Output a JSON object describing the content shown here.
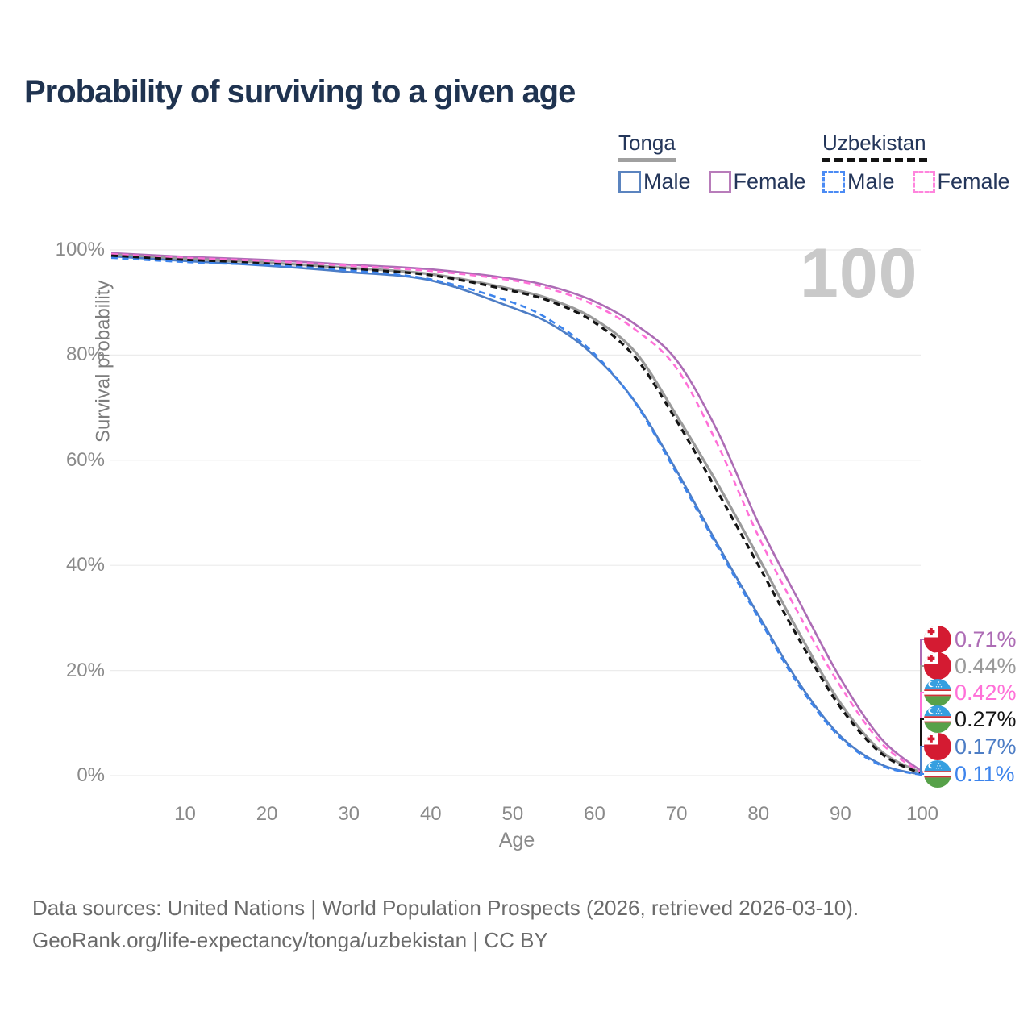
{
  "title": "Probability of surviving to a given age",
  "watermark": "100",
  "legend": {
    "groups": [
      {
        "country": "Tonga",
        "line_style": "solid",
        "line_color": "#a0a0a0",
        "items": [
          {
            "label": "Male",
            "color": "#5b84bf",
            "dashed": false
          },
          {
            "label": "Female",
            "color": "#b87cba",
            "dashed": false
          }
        ]
      },
      {
        "country": "Uzbekistan",
        "line_style": "dashed",
        "line_color": "#141414",
        "items": [
          {
            "label": "Male",
            "color": "#4b8bf4",
            "dashed": true
          },
          {
            "label": "Female",
            "color": "#ff85dd",
            "dashed": true
          }
        ]
      }
    ]
  },
  "y_axis": {
    "title": "Survival probability",
    "ticks": [
      "100%",
      "80%",
      "60%",
      "40%",
      "20%",
      "0%"
    ]
  },
  "x_axis": {
    "title": "Age",
    "ticks": [
      "10",
      "20",
      "30",
      "40",
      "50",
      "60",
      "70",
      "80",
      "90",
      "100"
    ]
  },
  "end_labels": [
    {
      "value": "0.71%",
      "flag": "tonga",
      "color": "#ad6cb5"
    },
    {
      "value": "0.44%",
      "flag": "tonga",
      "color": "#9a9a9a"
    },
    {
      "value": "0.42%",
      "flag": "uzbekistan",
      "color": "#ff70d8"
    },
    {
      "value": "0.27%",
      "flag": "uzbekistan",
      "color": "#141414"
    },
    {
      "value": "0.17%",
      "flag": "tonga",
      "color": "#4d7dc5"
    },
    {
      "value": "0.11%",
      "flag": "uzbekistan",
      "color": "#3d84ec"
    }
  ],
  "footer": {
    "line1": "Data sources: United Nations | World Population Prospects (2026, retrieved 2026-03-10).",
    "line2": "GeoRank.org/life-expectancy/tonga/uzbekistan | CC BY"
  },
  "chart_data": {
    "type": "line",
    "title": "Probability of surviving to a given age",
    "xlabel": "Age",
    "ylabel": "Survival probability",
    "xlim": [
      1,
      100
    ],
    "ylim": [
      0,
      100
    ],
    "grid": "horizontal",
    "legend_position": "top-right",
    "x": [
      1,
      10,
      20,
      30,
      40,
      50,
      55,
      60,
      65,
      70,
      75,
      80,
      85,
      90,
      95,
      100
    ],
    "series": [
      {
        "name": "Tonga Female",
        "color": "#ad6cb5",
        "dashed": false,
        "end_value_label": "0.71%",
        "values": [
          99.4,
          98.7,
          98.1,
          97.2,
          96.3,
          94.5,
          92.9,
          90.2,
          85.8,
          79.0,
          65.5,
          48.0,
          33.0,
          18.5,
          7.0,
          0.71
        ]
      },
      {
        "name": "Tonga",
        "color": "#9a9a9a",
        "dashed": false,
        "end_value_label": "0.44%",
        "values": [
          99.1,
          98.3,
          97.6,
          96.6,
          95.4,
          92.5,
          90.4,
          86.8,
          80.5,
          68.5,
          55.5,
          41.5,
          27.0,
          13.8,
          4.6,
          0.44
        ]
      },
      {
        "name": "Tonga Male",
        "color": "#4d7dc5",
        "dashed": false,
        "end_value_label": "0.17%",
        "values": [
          98.8,
          97.9,
          97.0,
          95.8,
          94.2,
          89.0,
          85.6,
          79.8,
          71.0,
          58.0,
          44.0,
          30.5,
          17.5,
          7.5,
          2.1,
          0.17
        ]
      },
      {
        "name": "Uzbekistan Female",
        "color": "#ff70d8",
        "dashed": true,
        "end_value_label": "0.42%",
        "values": [
          99.2,
          98.5,
          97.9,
          97.0,
          96.0,
          94.2,
          92.4,
          89.5,
          84.8,
          77.5,
          63.0,
          45.5,
          30.5,
          17.0,
          6.2,
          0.42
        ]
      },
      {
        "name": "Uzbekistan",
        "color": "#141414",
        "dashed": true,
        "end_value_label": "0.27%",
        "values": [
          98.9,
          98.1,
          97.4,
          96.4,
          95.2,
          92.2,
          90.0,
          86.2,
          79.5,
          67.5,
          54.0,
          40.0,
          25.8,
          13.0,
          4.2,
          0.27
        ]
      },
      {
        "name": "Uzbekistan Male",
        "color": "#3d84ec",
        "dashed": true,
        "end_value_label": "0.11%",
        "values": [
          98.5,
          97.7,
          97.1,
          96.1,
          94.4,
          90.0,
          86.2,
          80.2,
          70.8,
          57.5,
          43.5,
          30.0,
          17.0,
          7.2,
          1.9,
          0.11
        ]
      }
    ]
  }
}
